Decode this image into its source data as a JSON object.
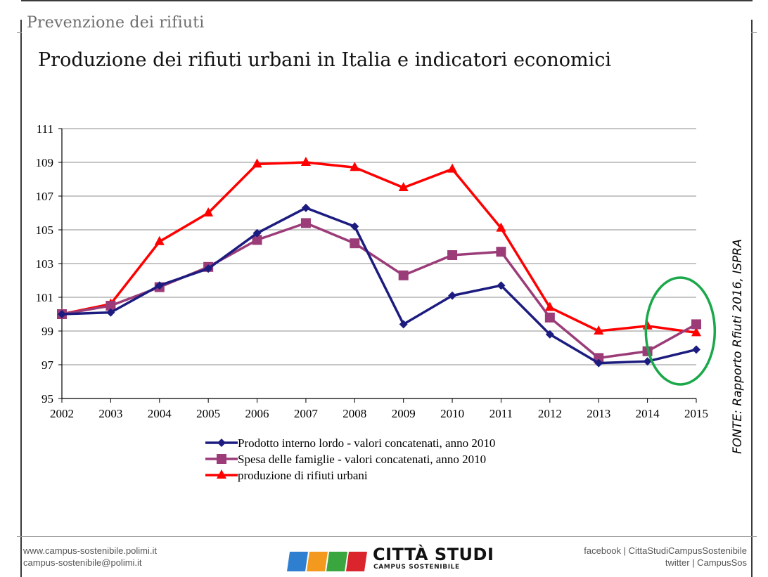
{
  "header": {
    "section_title": "Prevenzione dei rifiuti",
    "slide_title": "Produzione dei rifiuti urbani in Italia e indicatori economici"
  },
  "source_note": "FONTE: Rapporto Rfiuti 2016, ISPRA",
  "chart_data": {
    "type": "line",
    "title": "",
    "xlabel": "",
    "ylabel": "",
    "x": [
      "2002",
      "2003",
      "2004",
      "2005",
      "2006",
      "2007",
      "2008",
      "2009",
      "2010",
      "2011",
      "2012",
      "2013",
      "2014",
      "2015"
    ],
    "ylim": [
      95,
      111
    ],
    "yticks": [
      95,
      97,
      99,
      101,
      103,
      105,
      107,
      109,
      111
    ],
    "grid": true,
    "legend_position": "bottom",
    "series": [
      {
        "name": "Prodotto interno lordo - valori concatenati, anno 2010",
        "marker": "diamond",
        "color": "#1c1c80",
        "values": [
          100.0,
          100.1,
          101.7,
          102.7,
          104.8,
          106.3,
          105.2,
          99.4,
          101.1,
          101.7,
          98.8,
          97.1,
          97.2,
          97.9
        ]
      },
      {
        "name": "Spesa delle famiglie - valori concatenati, anno 2010",
        "marker": "square",
        "color": "#9b3c79",
        "values": [
          100.0,
          100.5,
          101.6,
          102.8,
          104.4,
          105.4,
          104.2,
          102.3,
          103.5,
          103.7,
          99.8,
          97.4,
          97.8,
          99.4
        ]
      },
      {
        "name": "produzione di rifiuti urbani",
        "marker": "triangle",
        "color": "#ff0000",
        "values": [
          100.0,
          100.6,
          104.3,
          106.0,
          108.9,
          109.0,
          108.7,
          107.5,
          108.6,
          105.1,
          100.4,
          99.0,
          99.3,
          98.9
        ]
      }
    ],
    "annotation": {
      "type": "ellipse",
      "color": "#1aa84a",
      "around": [
        "2014",
        "2015"
      ]
    }
  },
  "footer": {
    "left_line1": "www.campus-sostenibile.polimi.it",
    "left_line2": "campus-sostenibile@polimi.it",
    "right_line1": "facebook | CittaStudiCampusSostenibile",
    "right_line2": "twitter | CampusSos",
    "logo_text": "CITTÀ STUDI",
    "logo_sub": "CAMPUS SOSTENIBILE"
  }
}
